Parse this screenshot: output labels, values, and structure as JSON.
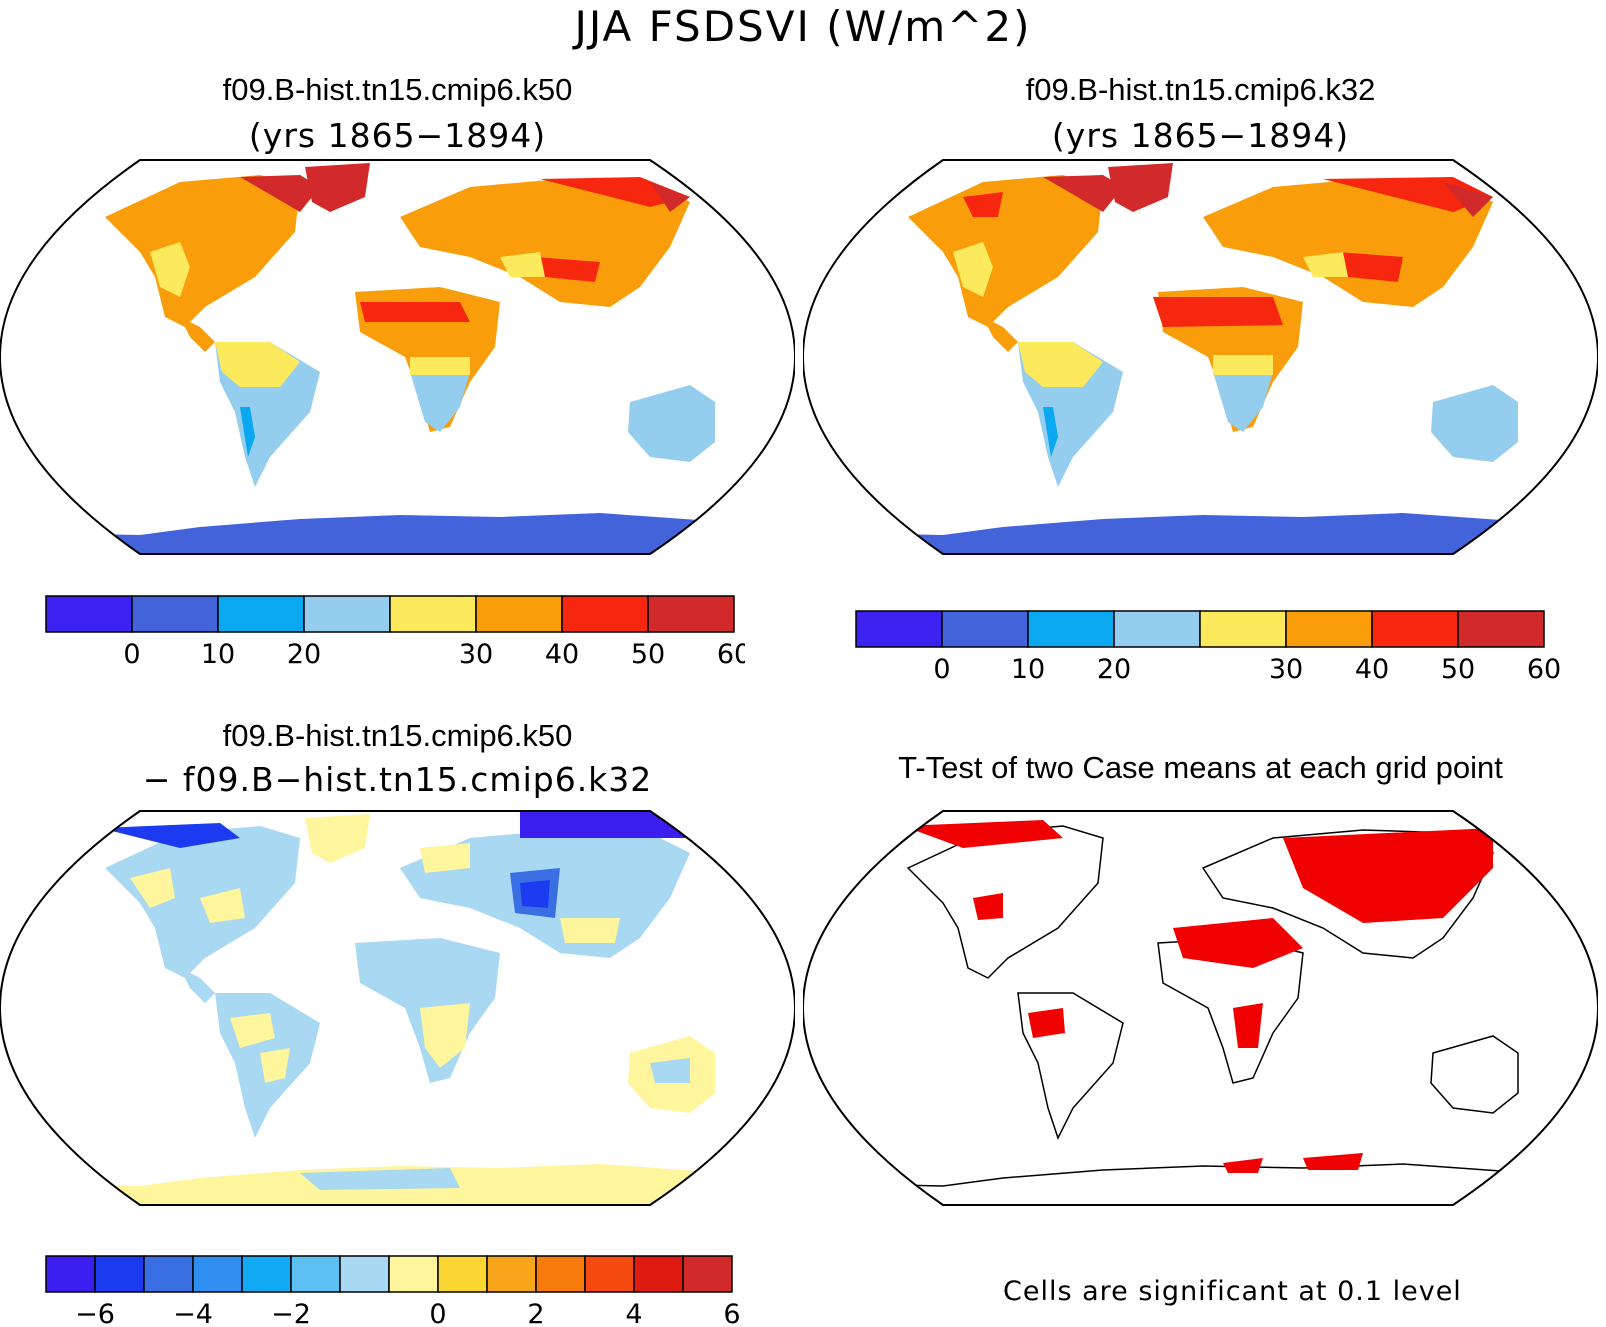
{
  "figure": {
    "title": "JJA FSDSVI (W/m^2)",
    "significance_note": "Cells are significant at 0.1 level"
  },
  "panels": [
    {
      "id": "k50",
      "title": "f09.B-hist.tn15.cmip6.k50",
      "subtitle": "(yrs 1865−1894)",
      "colorbar": {
        "colors": [
          "#3b22f0",
          "#4363db",
          "#0aa8f0",
          "#95cdee",
          "#fde95c",
          "#f99e0a",
          "#f7260f",
          "#d22a2a"
        ],
        "tick_labels": [
          "0",
          "10",
          "20",
          "30",
          "40",
          "50",
          "60"
        ]
      }
    },
    {
      "id": "k32",
      "title": "f09.B-hist.tn15.cmip6.k32",
      "subtitle": "(yrs 1865−1894)",
      "colorbar": {
        "colors": [
          "#3b22f0",
          "#4363db",
          "#0aa8f0",
          "#95cdee",
          "#fde95c",
          "#f99e0a",
          "#f7260f",
          "#d22a2a"
        ],
        "tick_labels": [
          "0",
          "10",
          "20",
          "30",
          "40",
          "50",
          "60"
        ]
      }
    },
    {
      "id": "diff",
      "title": "f09.B-hist.tn15.cmip6.k50",
      "subtitle": "− f09.B−hist.tn15.cmip6.k32",
      "colorbar": {
        "colors": [
          "#3b1ff0",
          "#1c3af0",
          "#3a6fe4",
          "#2f8ef0",
          "#12aaf5",
          "#5cc0f3",
          "#a8d8f2",
          "#fef59d",
          "#fbd632",
          "#f7a61b",
          "#f67b0c",
          "#f54a10",
          "#df1a10",
          "#d12a2a"
        ],
        "tick_labels": [
          "−6",
          "−4",
          "−2",
          "0",
          "2",
          "4",
          "6"
        ]
      }
    },
    {
      "id": "ttest",
      "title": "T-Test of two Case means at each grid point",
      "sig_color": "#f00000"
    }
  ]
}
